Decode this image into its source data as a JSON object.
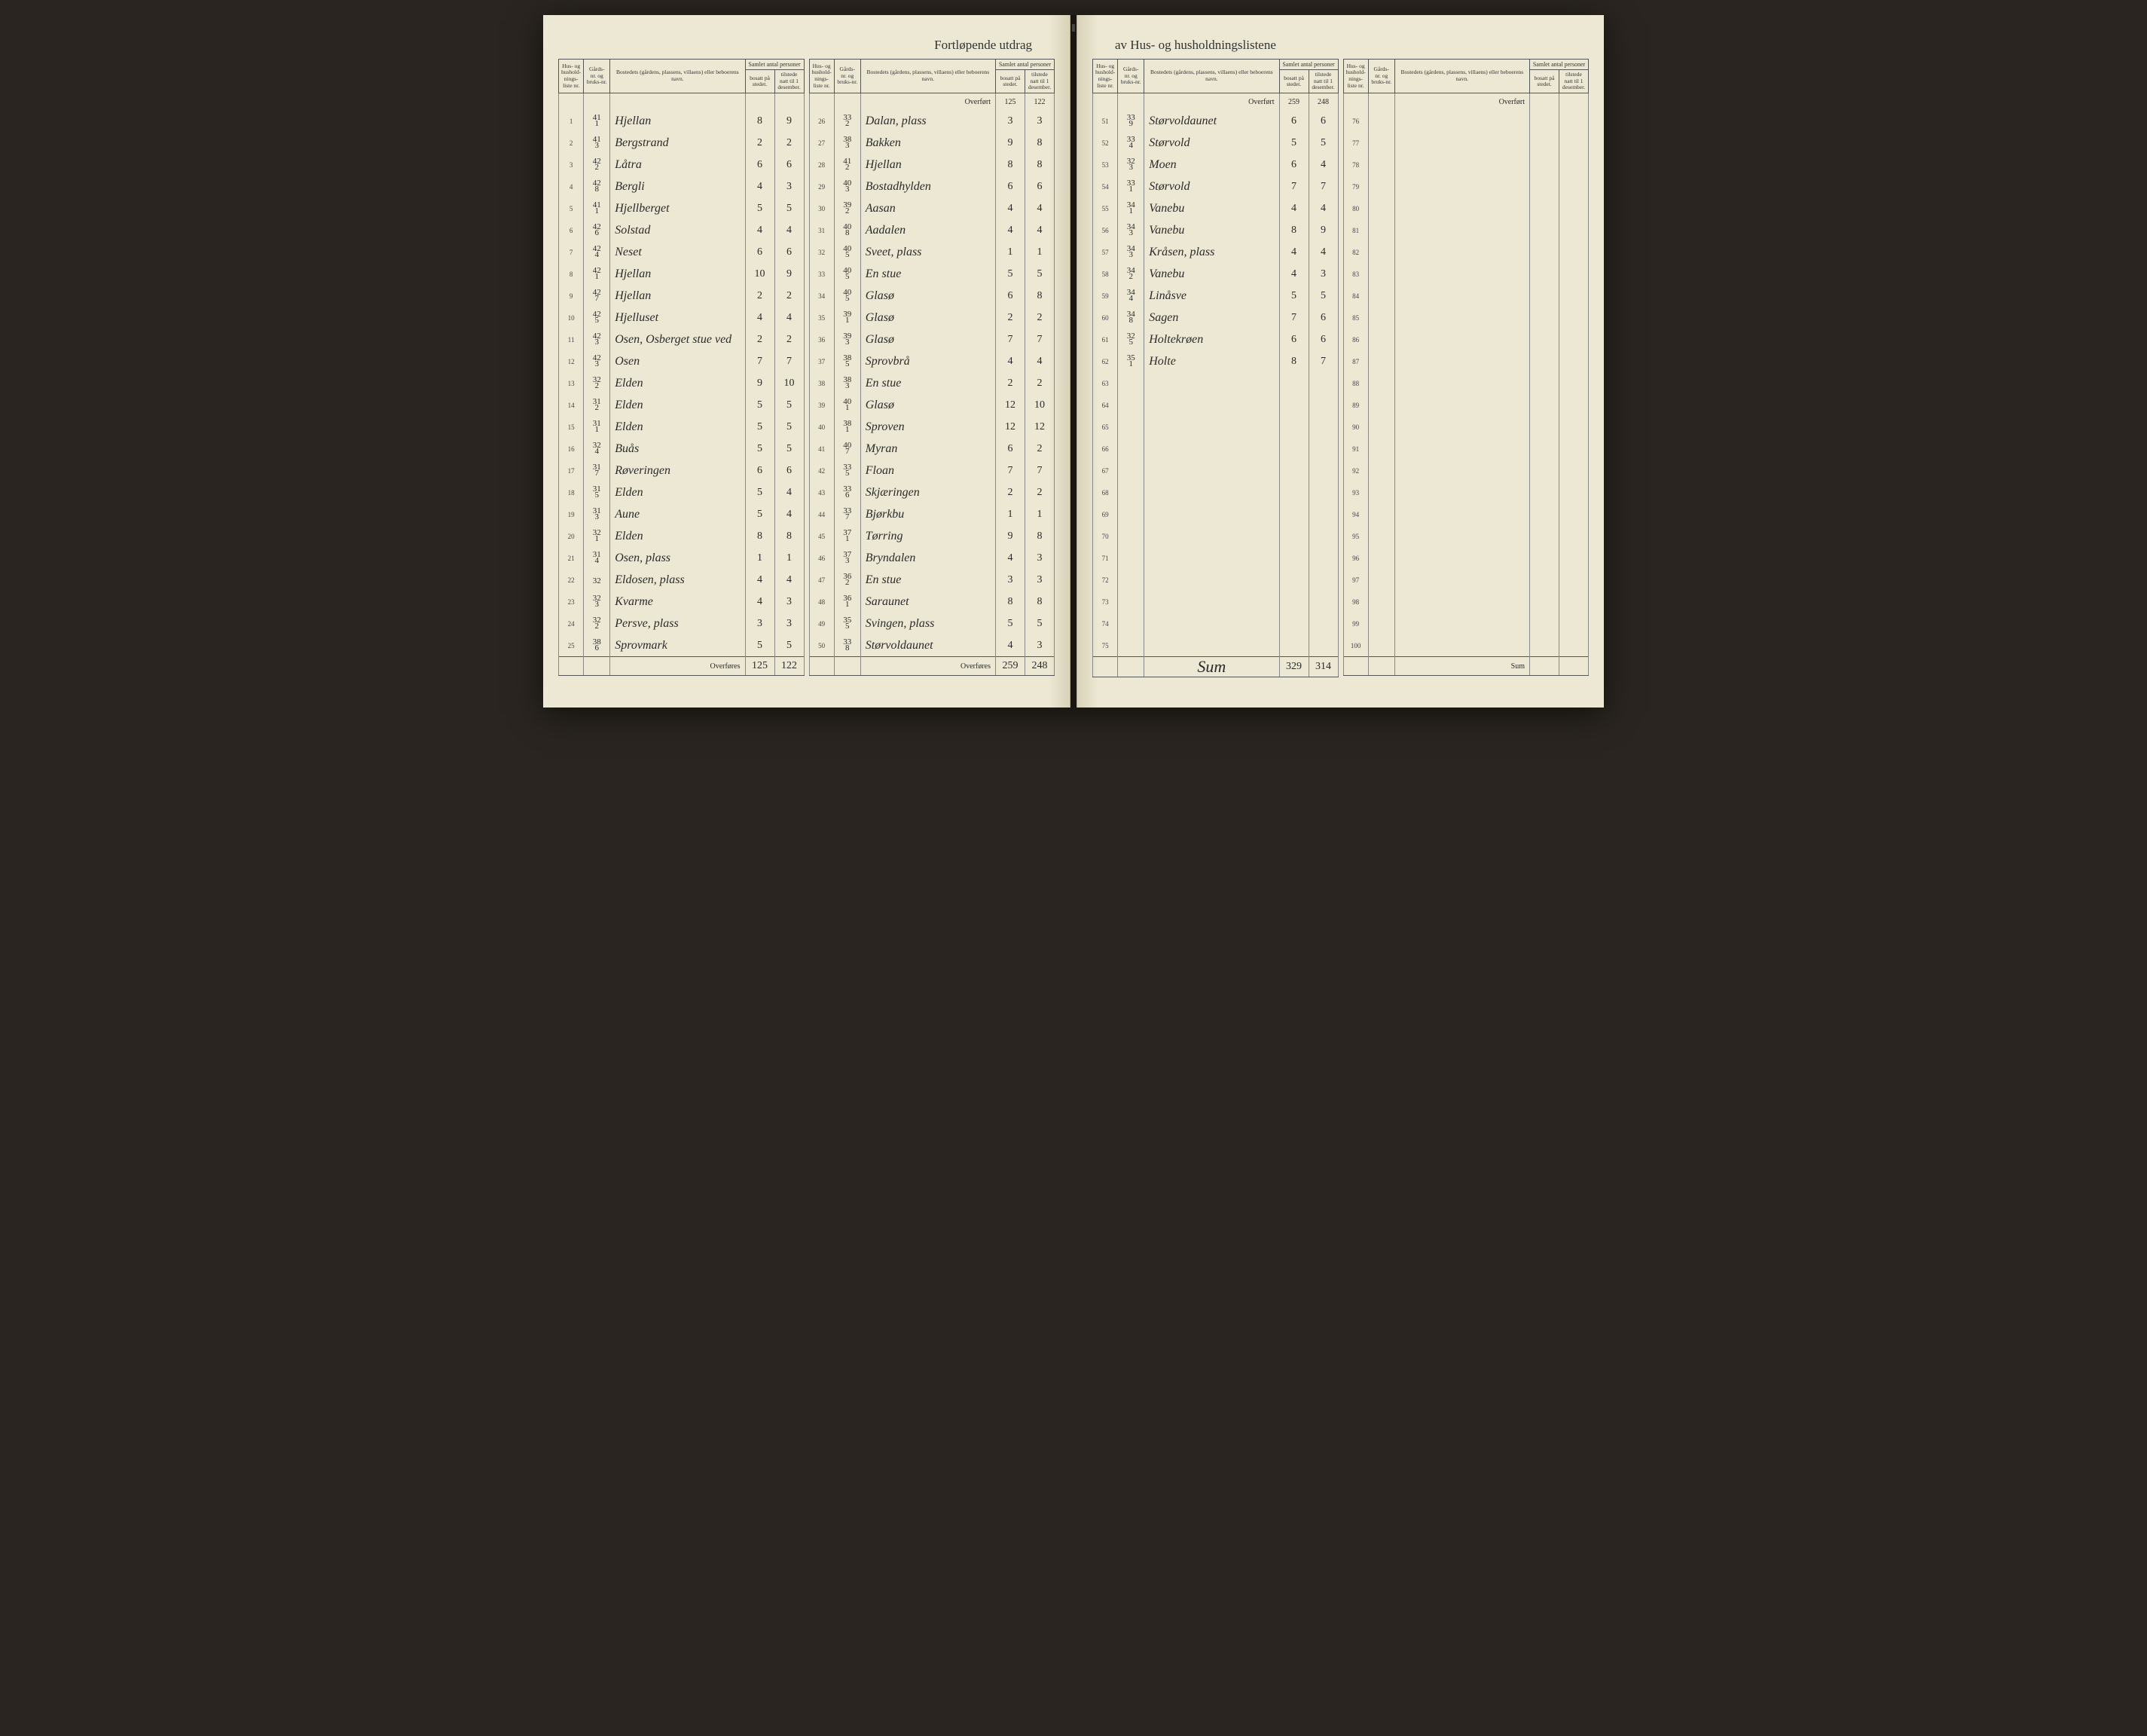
{
  "title_left": "Fortløpende utdrag",
  "title_right": "av Hus- og husholdningslistene",
  "headers": {
    "liste": "Hus- og hushold-nings-liste nr.",
    "gard": "Gårds-nr. og bruks-nr.",
    "bosted": "Bostedets (gårdens, plassens, villaens) eller beboerens navn.",
    "samlet": "Samlet antal personer",
    "bosatt": "bosatt på stedet.",
    "tilstede": "tilstede natt til 1 desember."
  },
  "overfort_label": "Overført",
  "overfores_label": "Overføres",
  "sum_label": "Sum",
  "sum_hand": "Sum",
  "col1": {
    "rows": [
      {
        "n": "1",
        "g1": "41",
        "g2": "1",
        "name": "Hjellan",
        "b": "8",
        "t": "9"
      },
      {
        "n": "2",
        "g1": "41",
        "g2": "3",
        "name": "Bergstrand",
        "b": "2",
        "t": "2"
      },
      {
        "n": "3",
        "g1": "42",
        "g2": "2",
        "name": "Låtra",
        "b": "6",
        "t": "6"
      },
      {
        "n": "4",
        "g1": "42",
        "g2": "8",
        "name": "Bergli",
        "b": "4",
        "t": "3"
      },
      {
        "n": "5",
        "g1": "41",
        "g2": "1",
        "name": "Hjellberget",
        "b": "5",
        "t": "5"
      },
      {
        "n": "6",
        "g1": "42",
        "g2": "6",
        "name": "Solstad",
        "b": "4",
        "t": "4"
      },
      {
        "n": "7",
        "g1": "42",
        "g2": "4",
        "name": "Neset",
        "b": "6",
        "t": "6"
      },
      {
        "n": "8",
        "g1": "42",
        "g2": "1",
        "name": "Hjellan",
        "b": "10",
        "t": "9"
      },
      {
        "n": "9",
        "g1": "42",
        "g2": "7",
        "name": "Hjellan",
        "b": "2",
        "t": "2"
      },
      {
        "n": "10",
        "g1": "42",
        "g2": "5",
        "name": "Hjelluset",
        "b": "4",
        "t": "4"
      },
      {
        "n": "11",
        "g1": "42",
        "g2": "3",
        "name": "Osen, Osberget stue ved",
        "b": "2",
        "t": "2"
      },
      {
        "n": "12",
        "g1": "42",
        "g2": "3",
        "name": "Osen",
        "b": "7",
        "t": "7"
      },
      {
        "n": "13",
        "g1": "32",
        "g2": "2",
        "name": "Elden",
        "b": "9",
        "t": "10"
      },
      {
        "n": "14",
        "g1": "31",
        "g2": "2",
        "name": "Elden",
        "b": "5",
        "t": "5"
      },
      {
        "n": "15",
        "g1": "31",
        "g2": "1",
        "name": "Elden",
        "b": "5",
        "t": "5"
      },
      {
        "n": "16",
        "g1": "32",
        "g2": "4",
        "name": "Buås",
        "b": "5",
        "t": "5"
      },
      {
        "n": "17",
        "g1": "31",
        "g2": "7",
        "name": "Røveringen",
        "b": "6",
        "t": "6"
      },
      {
        "n": "18",
        "g1": "31",
        "g2": "5",
        "name": "Elden",
        "b": "5",
        "t": "4"
      },
      {
        "n": "19",
        "g1": "31",
        "g2": "3",
        "name": "Aune",
        "b": "5",
        "t": "4"
      },
      {
        "n": "20",
        "g1": "32",
        "g2": "1",
        "name": "Elden",
        "b": "8",
        "t": "8"
      },
      {
        "n": "21",
        "g1": "31",
        "g2": "4",
        "name": "Osen, plass",
        "b": "1",
        "t": "1"
      },
      {
        "n": "22",
        "g1": "32",
        "g2": "",
        "name": "Eldosen, plass",
        "b": "4",
        "t": "4"
      },
      {
        "n": "23",
        "g1": "32",
        "g2": "3",
        "name": "Kvarme",
        "b": "4",
        "t": "3"
      },
      {
        "n": "24",
        "g1": "32",
        "g2": "2",
        "name": "Persve, plass",
        "b": "3",
        "t": "3"
      },
      {
        "n": "25",
        "g1": "38",
        "g2": "6",
        "name": "Sprovmark",
        "b": "5",
        "t": "5"
      }
    ],
    "sum_b": "125",
    "sum_t": "122"
  },
  "col2": {
    "overfort_b": "125",
    "overfort_t": "122",
    "rows": [
      {
        "n": "26",
        "g1": "33",
        "g2": "2",
        "name": "Dalan, plass",
        "b": "3",
        "t": "3"
      },
      {
        "n": "27",
        "g1": "38",
        "g2": "3",
        "name": "Bakken",
        "b": "9",
        "t": "8"
      },
      {
        "n": "28",
        "g1": "41",
        "g2": "2",
        "name": "Hjellan",
        "b": "8",
        "t": "8"
      },
      {
        "n": "29",
        "g1": "40",
        "g2": "3",
        "name": "Bostadhylden",
        "b": "6",
        "t": "6"
      },
      {
        "n": "30",
        "g1": "39",
        "g2": "2",
        "name": "Aasan",
        "b": "4",
        "t": "4"
      },
      {
        "n": "31",
        "g1": "40",
        "g2": "8",
        "name": "Aadalen",
        "b": "4",
        "t": "4"
      },
      {
        "n": "32",
        "g1": "40",
        "g2": "5",
        "name": "Sveet, plass",
        "b": "1",
        "t": "1"
      },
      {
        "n": "33",
        "g1": "40",
        "g2": "5",
        "name": "En stue",
        "b": "5",
        "t": "5"
      },
      {
        "n": "34",
        "g1": "40",
        "g2": "5",
        "name": "Glasø",
        "b": "6",
        "t": "8"
      },
      {
        "n": "35",
        "g1": "39",
        "g2": "1",
        "name": "Glasø",
        "b": "2",
        "t": "2"
      },
      {
        "n": "36",
        "g1": "39",
        "g2": "3",
        "name": "Glasø",
        "b": "7",
        "t": "7"
      },
      {
        "n": "37",
        "g1": "38",
        "g2": "5",
        "name": "Sprovbrå",
        "b": "4",
        "t": "4"
      },
      {
        "n": "38",
        "g1": "38",
        "g2": "3",
        "name": "En stue",
        "b": "2",
        "t": "2"
      },
      {
        "n": "39",
        "g1": "40",
        "g2": "1",
        "name": "Glasø",
        "b": "12",
        "t": "10"
      },
      {
        "n": "40",
        "g1": "38",
        "g2": "1",
        "name": "Sproven",
        "b": "12",
        "t": "12"
      },
      {
        "n": "41",
        "g1": "40",
        "g2": "7",
        "name": "Myran",
        "b": "6",
        "t": "2"
      },
      {
        "n": "42",
        "g1": "33",
        "g2": "5",
        "name": "Floan",
        "b": "7",
        "t": "7"
      },
      {
        "n": "43",
        "g1": "33",
        "g2": "6",
        "name": "Skjæringen",
        "b": "2",
        "t": "2"
      },
      {
        "n": "44",
        "g1": "33",
        "g2": "7",
        "name": "Bjørkbu",
        "b": "1",
        "t": "1"
      },
      {
        "n": "45",
        "g1": "37",
        "g2": "1",
        "name": "Tørring",
        "b": "9",
        "t": "8"
      },
      {
        "n": "46",
        "g1": "37",
        "g2": "3",
        "name": "Bryndalen",
        "b": "4",
        "t": "3"
      },
      {
        "n": "47",
        "g1": "36",
        "g2": "2",
        "name": "En stue",
        "b": "3",
        "t": "3"
      },
      {
        "n": "48",
        "g1": "36",
        "g2": "1",
        "name": "Saraunet",
        "b": "8",
        "t": "8"
      },
      {
        "n": "49",
        "g1": "35",
        "g2": "5",
        "name": "Svingen, plass",
        "b": "5",
        "t": "5"
      },
      {
        "n": "50",
        "g1": "33",
        "g2": "8",
        "name": "Størvoldaunet",
        "b": "4",
        "t": "3"
      }
    ],
    "sum_b": "259",
    "sum_t": "248"
  },
  "col3": {
    "overfort_b": "259",
    "overfort_t": "248",
    "rows": [
      {
        "n": "51",
        "g1": "33",
        "g2": "9",
        "name": "Størvoldaunet",
        "b": "6",
        "t": "6"
      },
      {
        "n": "52",
        "g1": "33",
        "g2": "4",
        "name": "Størvold",
        "b": "5",
        "t": "5"
      },
      {
        "n": "53",
        "g1": "32",
        "g2": "3",
        "name": "Moen",
        "b": "6",
        "t": "4"
      },
      {
        "n": "54",
        "g1": "33",
        "g2": "1",
        "name": "Størvold",
        "b": "7",
        "t": "7"
      },
      {
        "n": "55",
        "g1": "34",
        "g2": "1",
        "name": "Vanebu",
        "b": "4",
        "t": "4"
      },
      {
        "n": "56",
        "g1": "34",
        "g2": "3",
        "name": "Vanebu",
        "b": "8",
        "t": "9"
      },
      {
        "n": "57",
        "g1": "34",
        "g2": "3",
        "name": "Kråsen, plass",
        "b": "4",
        "t": "4"
      },
      {
        "n": "58",
        "g1": "34",
        "g2": "2",
        "name": "Vanebu",
        "b": "4",
        "t": "3"
      },
      {
        "n": "59",
        "g1": "34",
        "g2": "4",
        "name": "Linåsve",
        "b": "5",
        "t": "5"
      },
      {
        "n": "60",
        "g1": "34",
        "g2": "8",
        "name": "Sagen",
        "b": "7",
        "t": "6"
      },
      {
        "n": "61",
        "g1": "32",
        "g2": "5",
        "name": "Holtekrøen",
        "b": "6",
        "t": "6"
      },
      {
        "n": "62",
        "g1": "35",
        "g2": "1",
        "name": "Holte",
        "b": "8",
        "t": "7"
      },
      {
        "n": "63",
        "g1": "",
        "g2": "",
        "name": "",
        "b": "",
        "t": ""
      },
      {
        "n": "64",
        "g1": "",
        "g2": "",
        "name": "",
        "b": "",
        "t": ""
      },
      {
        "n": "65",
        "g1": "",
        "g2": "",
        "name": "",
        "b": "",
        "t": ""
      },
      {
        "n": "66",
        "g1": "",
        "g2": "",
        "name": "",
        "b": "",
        "t": ""
      },
      {
        "n": "67",
        "g1": "",
        "g2": "",
        "name": "",
        "b": "",
        "t": ""
      },
      {
        "n": "68",
        "g1": "",
        "g2": "",
        "name": "",
        "b": "",
        "t": ""
      },
      {
        "n": "69",
        "g1": "",
        "g2": "",
        "name": "",
        "b": "",
        "t": ""
      },
      {
        "n": "70",
        "g1": "",
        "g2": "",
        "name": "",
        "b": "",
        "t": ""
      },
      {
        "n": "71",
        "g1": "",
        "g2": "",
        "name": "",
        "b": "",
        "t": ""
      },
      {
        "n": "72",
        "g1": "",
        "g2": "",
        "name": "",
        "b": "",
        "t": ""
      },
      {
        "n": "73",
        "g1": "",
        "g2": "",
        "name": "",
        "b": "",
        "t": ""
      },
      {
        "n": "74",
        "g1": "",
        "g2": "",
        "name": "",
        "b": "",
        "t": ""
      },
      {
        "n": "75",
        "g1": "",
        "g2": "",
        "name": "",
        "b": "",
        "t": ""
      }
    ],
    "sum_b": "329",
    "sum_t": "314"
  },
  "col4": {
    "rows": [
      {
        "n": "76"
      },
      {
        "n": "77"
      },
      {
        "n": "78"
      },
      {
        "n": "79"
      },
      {
        "n": "80"
      },
      {
        "n": "81"
      },
      {
        "n": "82"
      },
      {
        "n": "83"
      },
      {
        "n": "84"
      },
      {
        "n": "85"
      },
      {
        "n": "86"
      },
      {
        "n": "87"
      },
      {
        "n": "88"
      },
      {
        "n": "89"
      },
      {
        "n": "90"
      },
      {
        "n": "91"
      },
      {
        "n": "92"
      },
      {
        "n": "93"
      },
      {
        "n": "94"
      },
      {
        "n": "95"
      },
      {
        "n": "96"
      },
      {
        "n": "97"
      },
      {
        "n": "98"
      },
      {
        "n": "99"
      },
      {
        "n": "100"
      }
    ]
  }
}
